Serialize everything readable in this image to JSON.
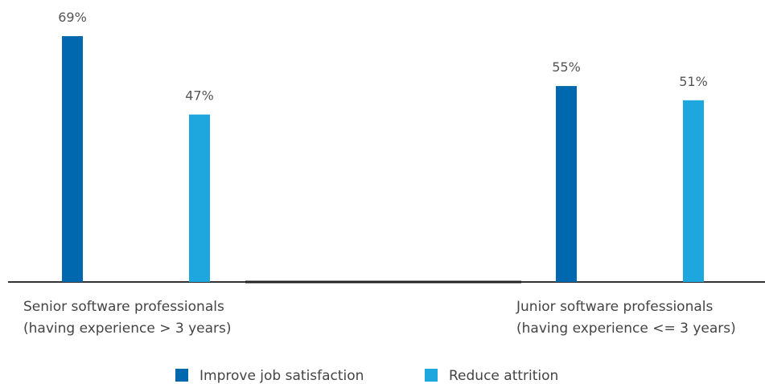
{
  "chart_data": {
    "type": "bar",
    "categories": [
      [
        "Senior software professionals",
        "(having experience > 3 years)"
      ],
      [
        "Junior software professionals",
        "(having experience <= 3 years)"
      ]
    ],
    "series": [
      {
        "name": "Improve job satisfaction",
        "values": [
          69,
          55
        ],
        "labels": [
          "69%",
          "55%"
        ]
      },
      {
        "name": "Reduce attrition",
        "values": [
          47,
          51
        ],
        "labels": [
          "47%",
          "51%"
        ]
      }
    ],
    "unit": "%",
    "ylim": [
      0,
      69
    ],
    "grid": false,
    "legend": "bottom-center",
    "colors": [
      "#0068ae",
      "#1ea7de"
    ]
  }
}
